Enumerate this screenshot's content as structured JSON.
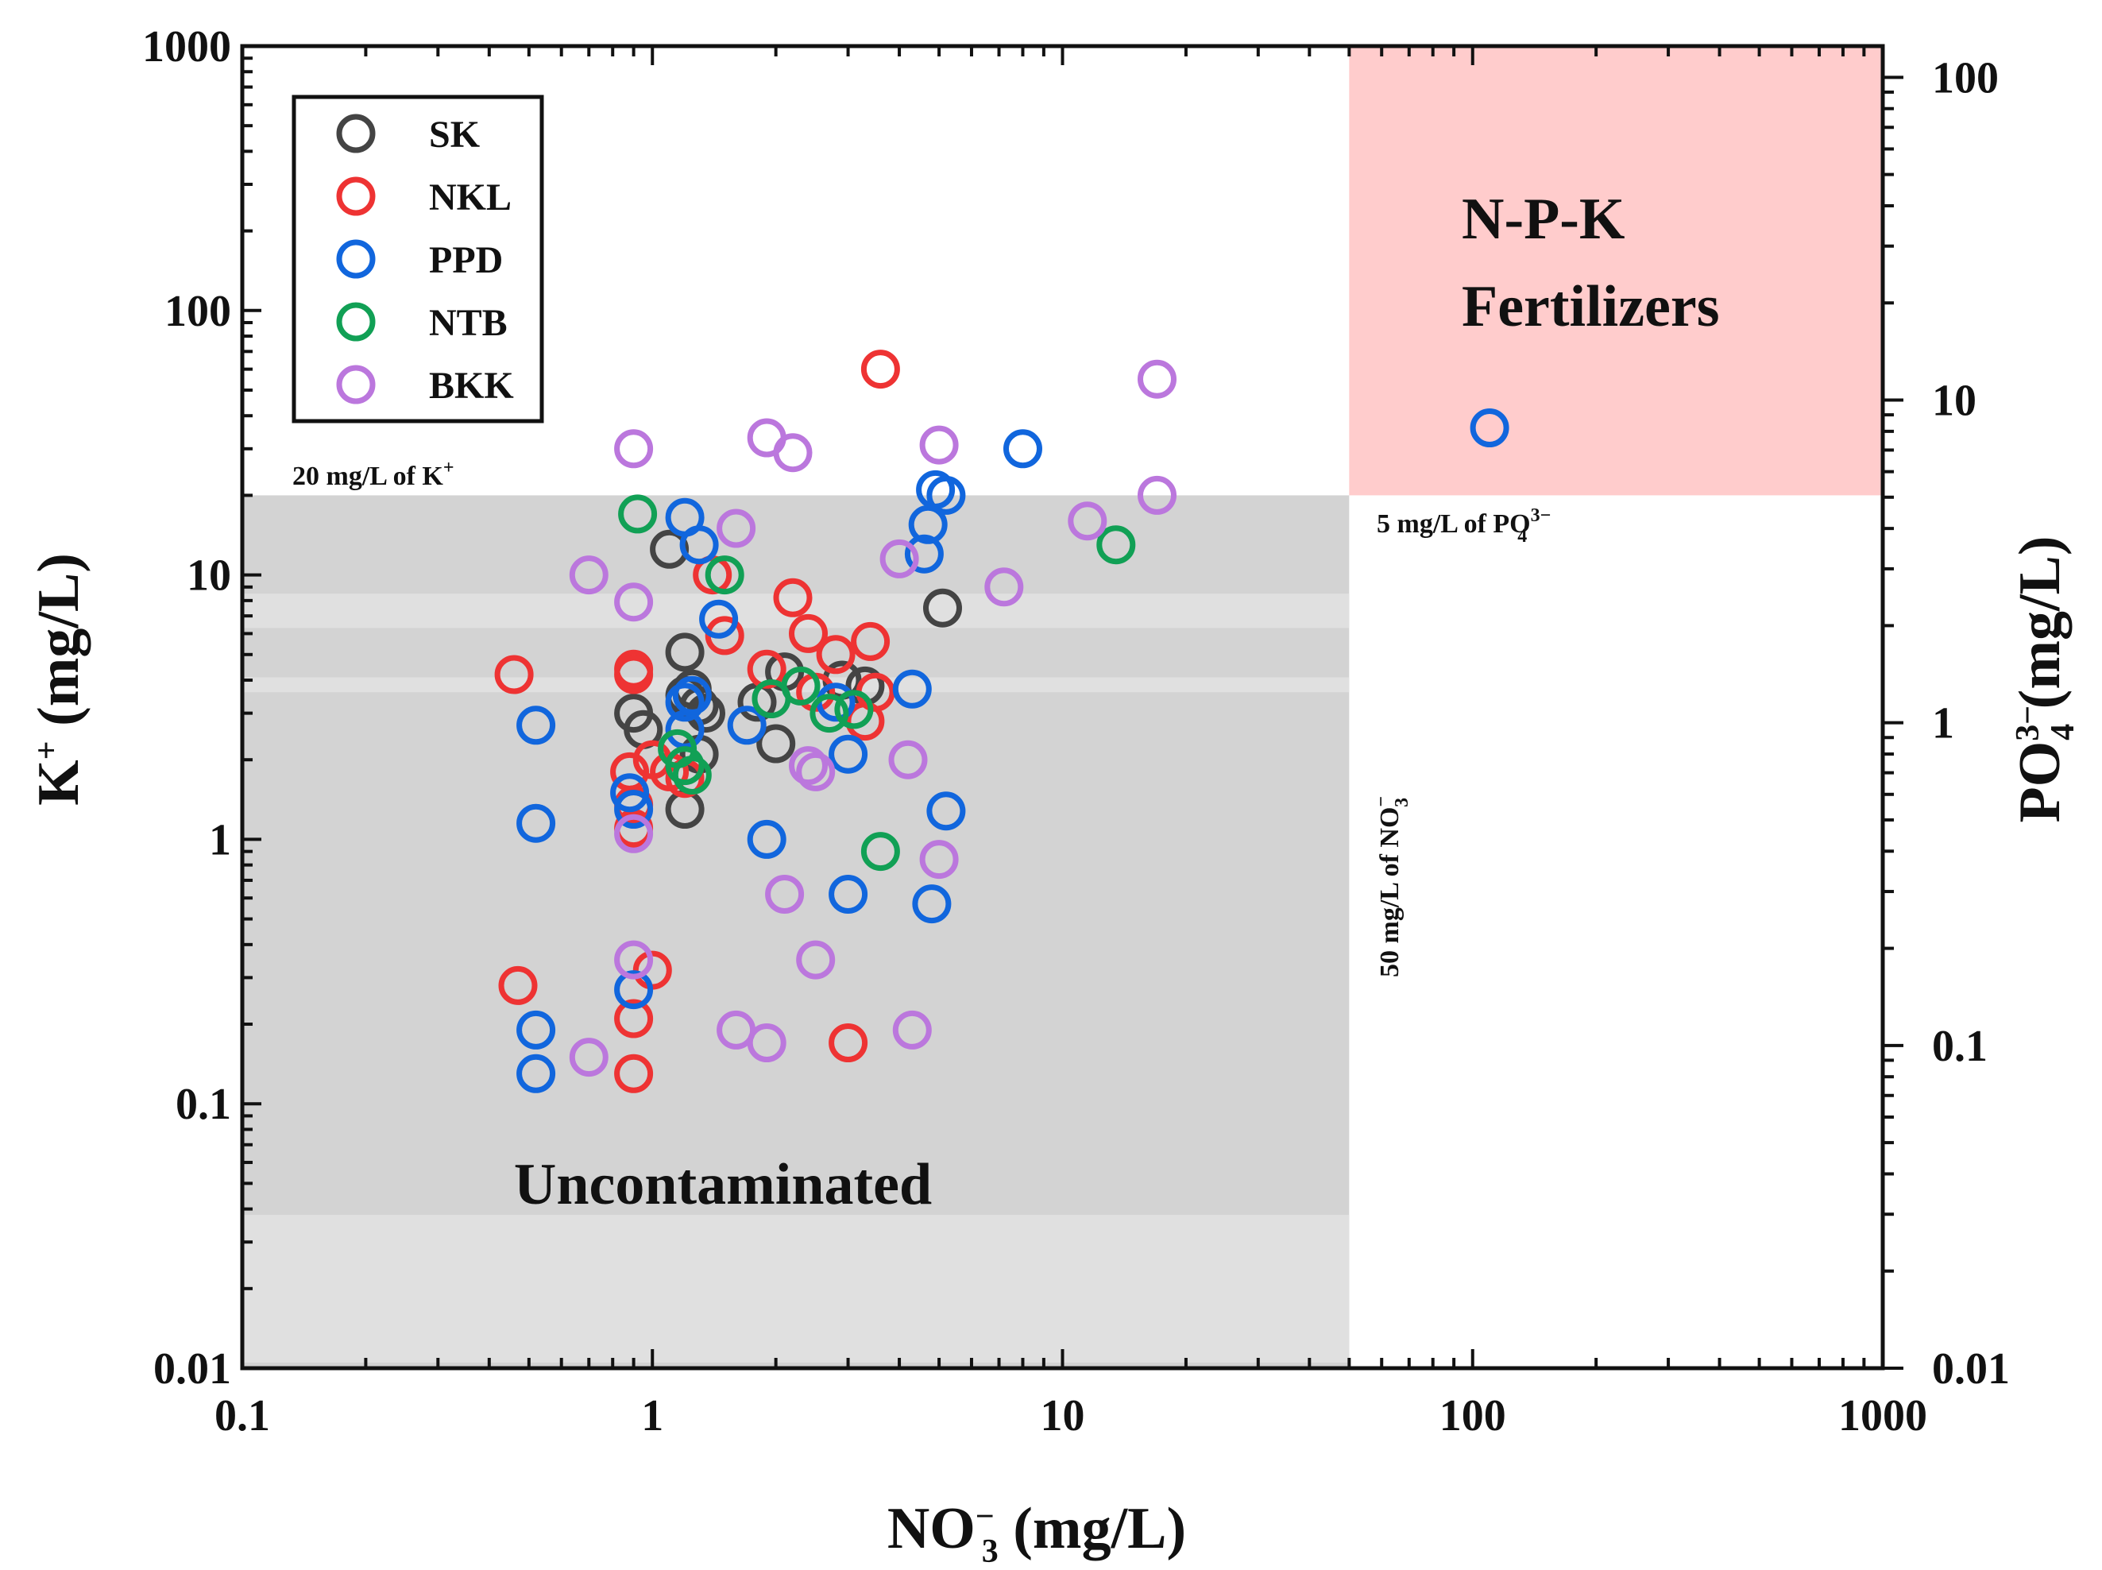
{
  "chart_data": {
    "type": "scatter",
    "title": "",
    "x_axis": {
      "label_main": "NO",
      "label_sub": "3",
      "label_sup": "−",
      "label_unit": " (mg/L)",
      "scale": "log",
      "range": [
        0.1,
        1000
      ],
      "ticks": [
        0.1,
        1,
        10,
        100,
        1000
      ],
      "tick_labels": [
        "0.1",
        "1",
        "10",
        "100",
        "1000"
      ]
    },
    "y_axis": {
      "label_main": "K",
      "label_sup": "+",
      "label_unit": " (mg/L)",
      "scale": "log",
      "range": [
        0.01,
        1000
      ],
      "ticks": [
        0.01,
        0.1,
        1,
        10,
        100,
        1000
      ],
      "tick_labels": [
        "0.01",
        "0.1",
        "1",
        "10",
        "100",
        "1000"
      ]
    },
    "y2_axis": {
      "label_main": "PO",
      "label_sub": "4",
      "label_sup": "3−",
      "label_unit": " (mg/L)",
      "scale": "log",
      "range": [
        0.01,
        125
      ],
      "ticks": [
        0.01,
        0.1,
        1,
        10,
        100
      ],
      "tick_labels": [
        "0.01",
        "0.1",
        "1",
        "10",
        "100"
      ]
    },
    "regions": {
      "uncontaminated": {
        "label": "Uncontaminated",
        "x_max": 50,
        "y_max": 20,
        "color": "#d3d3d3"
      },
      "fertilizers": {
        "label_line1": "N-P-K",
        "label_line2": "Fertilizers",
        "x_min": 50,
        "y_min": 20,
        "color": "#ffcccc"
      },
      "light_bands_k": [
        [
          6.3,
          8.5
        ],
        [
          3.6,
          4.1
        ],
        [
          0.0105,
          0.038
        ]
      ]
    },
    "annotations": {
      "k_threshold": {
        "text": "20 mg/L of K",
        "sup": "+"
      },
      "po4_threshold": {
        "text": "5 mg/L of PO",
        "sub": "4",
        "sup": "3−"
      },
      "no3_threshold": {
        "text": "50 mg/L of NO",
        "sub": "3",
        "sup": "−"
      }
    },
    "legend_position": "top-left",
    "series": [
      {
        "name": "SK",
        "color": "#444444",
        "points": [
          [
            0.9,
            3.0
          ],
          [
            0.95,
            2.6
          ],
          [
            1.1,
            12.5
          ],
          [
            1.2,
            5.1
          ],
          [
            1.2,
            3.5
          ],
          [
            1.2,
            1.3
          ],
          [
            1.25,
            3.7
          ],
          [
            1.3,
            3.2
          ],
          [
            1.3,
            2.1
          ],
          [
            1.35,
            3.0
          ],
          [
            1.8,
            3.3
          ],
          [
            2.0,
            2.3
          ],
          [
            2.1,
            4.3
          ],
          [
            2.9,
            4.0
          ],
          [
            3.3,
            3.8
          ],
          [
            5.1,
            7.5
          ]
        ]
      },
      {
        "name": "NKL",
        "color": "#ee3333",
        "points": [
          [
            0.46,
            4.2
          ],
          [
            0.47,
            0.28
          ],
          [
            0.88,
            1.8
          ],
          [
            0.9,
            4.4
          ],
          [
            0.9,
            4.2
          ],
          [
            0.9,
            1.35
          ],
          [
            0.9,
            1.1
          ],
          [
            0.9,
            0.21
          ],
          [
            0.9,
            0.13
          ],
          [
            1.0,
            2.0
          ],
          [
            1.0,
            0.32
          ],
          [
            1.1,
            1.8
          ],
          [
            1.2,
            1.7
          ],
          [
            1.4,
            10.0
          ],
          [
            1.5,
            5.9
          ],
          [
            1.9,
            4.4
          ],
          [
            2.2,
            8.2
          ],
          [
            2.4,
            6.0
          ],
          [
            2.5,
            3.6
          ],
          [
            2.8,
            5.0
          ],
          [
            3.0,
            0.17
          ],
          [
            3.3,
            2.8
          ],
          [
            3.4,
            5.6
          ],
          [
            3.5,
            3.6
          ],
          [
            3.6,
            60.0
          ]
        ]
      },
      {
        "name": "PPD",
        "color": "#1166dd",
        "points": [
          [
            0.52,
            2.7
          ],
          [
            0.52,
            1.15
          ],
          [
            0.52,
            0.19
          ],
          [
            0.52,
            0.13
          ],
          [
            0.88,
            1.5
          ],
          [
            0.9,
            1.3
          ],
          [
            0.9,
            0.27
          ],
          [
            1.2,
            16.5
          ],
          [
            1.2,
            3.3
          ],
          [
            1.2,
            2.6
          ],
          [
            1.25,
            3.5
          ],
          [
            1.3,
            13.0
          ],
          [
            1.45,
            6.8
          ],
          [
            1.7,
            2.7
          ],
          [
            1.9,
            1.0
          ],
          [
            2.8,
            3.3
          ],
          [
            3.0,
            2.1
          ],
          [
            3.0,
            0.62
          ],
          [
            4.3,
            3.7
          ],
          [
            4.6,
            12.0
          ],
          [
            4.7,
            15.5
          ],
          [
            4.8,
            0.57
          ],
          [
            4.9,
            21.0
          ],
          [
            5.2,
            20.0
          ],
          [
            5.2,
            1.28
          ],
          [
            8.0,
            30.0
          ],
          [
            110.0,
            36.0
          ]
        ]
      },
      {
        "name": "NTB",
        "color": "#11a055",
        "points": [
          [
            0.92,
            17.0
          ],
          [
            1.15,
            2.2
          ],
          [
            1.2,
            1.9
          ],
          [
            1.25,
            1.75
          ],
          [
            1.5,
            10.0
          ],
          [
            1.95,
            3.4
          ],
          [
            2.3,
            3.8
          ],
          [
            2.7,
            3.0
          ],
          [
            3.1,
            3.1
          ],
          [
            3.6,
            0.9
          ],
          [
            13.5,
            13.0
          ]
        ]
      },
      {
        "name": "BKK",
        "color": "#bb77dd",
        "points": [
          [
            0.7,
            10.0
          ],
          [
            0.7,
            0.15
          ],
          [
            0.9,
            30.0
          ],
          [
            0.9,
            7.9
          ],
          [
            0.9,
            1.05
          ],
          [
            0.9,
            0.35
          ],
          [
            1.6,
            15.0
          ],
          [
            1.6,
            0.19
          ],
          [
            1.9,
            33.0
          ],
          [
            1.9,
            0.17
          ],
          [
            2.1,
            0.62
          ],
          [
            2.2,
            29.0
          ],
          [
            2.4,
            1.9
          ],
          [
            2.5,
            1.8
          ],
          [
            2.5,
            0.35
          ],
          [
            4.0,
            11.5
          ],
          [
            4.2,
            2.0
          ],
          [
            4.3,
            0.19
          ],
          [
            5.0,
            31.0
          ],
          [
            5.0,
            0.84
          ],
          [
            7.2,
            9.0
          ],
          [
            11.5,
            16.0
          ],
          [
            17.0,
            55.0
          ],
          [
            17.0,
            20.0
          ]
        ]
      }
    ]
  }
}
